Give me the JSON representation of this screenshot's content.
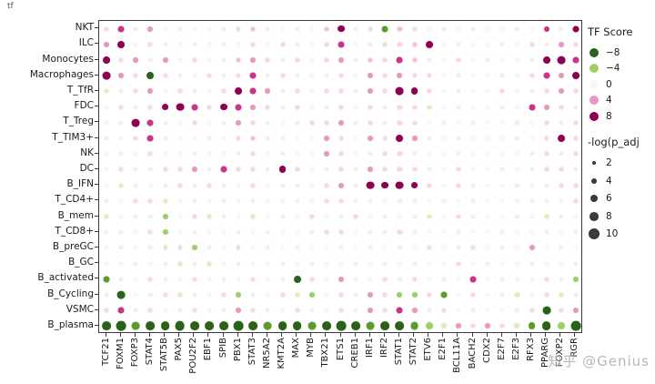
{
  "corner_label": "tf",
  "watermark": "知乎 @Genius",
  "legend": {
    "color_title": "TF Score",
    "color_values": [
      -8,
      -4,
      0,
      4,
      8
    ],
    "size_title": "-log(p_adj",
    "size_values": [
      2,
      4,
      6,
      8,
      10
    ]
  },
  "chart_data": {
    "type": "scatter",
    "subtype": "dot-heatmap",
    "title": "",
    "xlabel": "",
    "ylabel": "",
    "color_legend": "TF Score",
    "color_range": [
      -8,
      8
    ],
    "size_legend": "-log(p_adj",
    "size_range": [
      2,
      10
    ],
    "x_labels": [
      "TCF21",
      "FOXM1",
      "FOXP3",
      "STAT4",
      "STAT5B",
      "PAX5",
      "POU2F2",
      "EBF1",
      "SPIB",
      "PBX1",
      "STAT3",
      "NR5A2",
      "KMT2A",
      "MAX",
      "MYB",
      "TBX21",
      "ETS1",
      "CREB1",
      "IRF1",
      "IRF2",
      "STAT1",
      "STAT2",
      "ETV6",
      "E2F1",
      "BCL11A",
      "BACH2",
      "CDX2",
      "E2F7",
      "E2F3",
      "RFX3",
      "PPARG",
      "FOXP2",
      "RGR"
    ],
    "y_labels": [
      "NKT",
      "ILC",
      "Monocytes",
      "Macrophages",
      "T_TfR",
      "FDC",
      "T_Treg",
      "T_TIM3+",
      "NK",
      "DC",
      "B_IFN",
      "T_CD4+",
      "B_mem",
      "T_CD8+",
      "B_preGC",
      "B_GC",
      "B_activated",
      "B_Cycling",
      "VSMC",
      "B_plasma"
    ],
    "score_matrix": [
      [
        2,
        6,
        1,
        4,
        0,
        -1,
        0,
        0,
        1,
        2,
        3,
        1,
        0,
        1,
        0,
        3,
        8,
        1,
        2,
        -6,
        3,
        2,
        0,
        1,
        0,
        1,
        0,
        0,
        1,
        0,
        6,
        1,
        8
      ],
      [
        4,
        8,
        0,
        2,
        1,
        0,
        -1,
        0,
        1,
        0,
        2,
        0,
        2,
        1,
        0,
        2,
        6,
        0,
        1,
        2,
        2,
        3,
        8,
        0,
        1,
        0,
        0,
        1,
        0,
        2,
        1,
        4,
        2
      ],
      [
        8,
        2,
        4,
        1,
        4,
        0,
        2,
        0,
        1,
        3,
        4,
        2,
        1,
        2,
        0,
        2,
        4,
        1,
        3,
        2,
        6,
        3,
        1,
        0,
        2,
        0,
        1,
        0,
        0,
        1,
        8,
        8,
        6
      ],
      [
        8,
        4,
        2,
        -8,
        2,
        1,
        0,
        2,
        1,
        2,
        6,
        1,
        2,
        1,
        0,
        1,
        2,
        0,
        4,
        2,
        4,
        2,
        2,
        0,
        1,
        0,
        0,
        1,
        0,
        2,
        6,
        4,
        8
      ],
      [
        -2,
        1,
        2,
        4,
        0,
        2,
        1,
        0,
        2,
        8,
        6,
        4,
        1,
        2,
        0,
        2,
        2,
        1,
        4,
        2,
        8,
        8,
        2,
        0,
        1,
        0,
        0,
        2,
        0,
        1,
        2,
        4,
        2
      ],
      [
        0,
        2,
        1,
        2,
        8,
        8,
        6,
        2,
        8,
        6,
        4,
        2,
        1,
        2,
        0,
        1,
        2,
        0,
        2,
        1,
        2,
        2,
        -2,
        0,
        1,
        0,
        0,
        1,
        0,
        6,
        4,
        2,
        1
      ],
      [
        0,
        1,
        8,
        6,
        1,
        0,
        2,
        0,
        1,
        4,
        2,
        1,
        0,
        1,
        2,
        2,
        4,
        1,
        2,
        1,
        2,
        2,
        0,
        1,
        0,
        1,
        0,
        0,
        1,
        0,
        2,
        1,
        2
      ],
      [
        1,
        0,
        2,
        6,
        1,
        0,
        0,
        1,
        0,
        2,
        3,
        1,
        1,
        0,
        0,
        4,
        2,
        0,
        4,
        2,
        8,
        4,
        1,
        0,
        1,
        0,
        0,
        0,
        1,
        0,
        2,
        8,
        2
      ],
      [
        0,
        1,
        0,
        2,
        0,
        0,
        1,
        0,
        0,
        1,
        2,
        0,
        1,
        0,
        0,
        4,
        2,
        0,
        1,
        2,
        2,
        1,
        0,
        0,
        1,
        0,
        0,
        0,
        0,
        1,
        2,
        1,
        2
      ],
      [
        0,
        2,
        1,
        1,
        2,
        2,
        4,
        1,
        6,
        2,
        2,
        1,
        8,
        2,
        0,
        1,
        2,
        1,
        4,
        2,
        2,
        2,
        1,
        0,
        2,
        0,
        0,
        1,
        0,
        1,
        2,
        2,
        1
      ],
      [
        0,
        -2,
        1,
        0,
        1,
        2,
        1,
        2,
        1,
        0,
        2,
        0,
        1,
        1,
        0,
        2,
        4,
        1,
        8,
        8,
        8,
        8,
        2,
        0,
        2,
        1,
        0,
        0,
        1,
        0,
        1,
        2,
        2
      ],
      [
        -1,
        0,
        2,
        2,
        -2,
        0,
        1,
        0,
        1,
        0,
        1,
        0,
        0,
        1,
        0,
        2,
        2,
        1,
        1,
        0,
        1,
        1,
        0,
        -1,
        0,
        1,
        0,
        0,
        0,
        1,
        1,
        0,
        2
      ],
      [
        -2,
        0,
        1,
        -1,
        -4,
        0,
        2,
        -2,
        1,
        0,
        -2,
        0,
        1,
        0,
        2,
        0,
        1,
        2,
        0,
        1,
        0,
        1,
        -2,
        0,
        2,
        1,
        0,
        0,
        1,
        0,
        -2,
        1,
        0
      ],
      [
        -1,
        1,
        0,
        2,
        -4,
        0,
        1,
        0,
        0,
        1,
        0,
        1,
        0,
        0,
        1,
        2,
        2,
        0,
        1,
        1,
        2,
        1,
        0,
        0,
        1,
        0,
        0,
        1,
        0,
        0,
        1,
        0,
        1
      ],
      [
        0,
        1,
        0,
        1,
        -2,
        2,
        -4,
        1,
        0,
        2,
        0,
        1,
        0,
        1,
        0,
        0,
        1,
        0,
        1,
        0,
        1,
        0,
        2,
        0,
        1,
        2,
        0,
        1,
        0,
        4,
        0,
        1,
        0
      ],
      [
        0,
        0,
        1,
        0,
        1,
        -2,
        1,
        -2,
        0,
        1,
        0,
        0,
        1,
        0,
        1,
        0,
        0,
        1,
        0,
        1,
        0,
        1,
        0,
        0,
        2,
        0,
        1,
        0,
        0,
        1,
        0,
        0,
        1
      ],
      [
        -6,
        1,
        0,
        2,
        1,
        0,
        2,
        0,
        1,
        0,
        2,
        0,
        1,
        -8,
        2,
        0,
        4,
        1,
        0,
        2,
        1,
        2,
        0,
        1,
        0,
        6,
        0,
        1,
        0,
        0,
        2,
        1,
        -4
      ],
      [
        1,
        -8,
        0,
        1,
        2,
        -2,
        1,
        0,
        2,
        -4,
        1,
        0,
        2,
        -2,
        -4,
        0,
        2,
        1,
        4,
        2,
        -4,
        -4,
        2,
        -6,
        0,
        2,
        0,
        1,
        -2,
        0,
        2,
        -2,
        1
      ],
      [
        2,
        6,
        1,
        2,
        0,
        1,
        2,
        0,
        1,
        4,
        2,
        1,
        0,
        2,
        1,
        0,
        2,
        1,
        4,
        2,
        6,
        4,
        1,
        2,
        0,
        1,
        0,
        0,
        1,
        2,
        -8,
        2,
        4
      ],
      [
        -8,
        -8,
        -6,
        -8,
        -8,
        -8,
        -8,
        -8,
        -8,
        -8,
        -8,
        -6,
        -8,
        -8,
        -6,
        -8,
        -8,
        -8,
        -6,
        -8,
        -8,
        -6,
        -4,
        -2,
        4,
        2,
        4,
        2,
        -2,
        -6,
        -8,
        -4,
        -8
      ]
    ],
    "logp_matrix": [
      [
        3,
        5,
        2,
        4,
        2,
        2,
        2,
        2,
        2,
        3,
        3,
        2,
        2,
        2,
        2,
        3,
        6,
        2,
        3,
        5,
        3,
        3,
        2,
        2,
        2,
        2,
        2,
        2,
        2,
        2,
        4,
        2,
        5
      ],
      [
        4,
        6,
        2,
        3,
        2,
        2,
        2,
        2,
        2,
        2,
        3,
        2,
        3,
        2,
        2,
        3,
        5,
        2,
        2,
        3,
        3,
        3,
        6,
        2,
        2,
        2,
        2,
        2,
        2,
        3,
        2,
        4,
        3
      ],
      [
        6,
        3,
        4,
        2,
        4,
        2,
        3,
        2,
        2,
        3,
        4,
        3,
        2,
        3,
        2,
        3,
        4,
        2,
        3,
        3,
        5,
        3,
        2,
        2,
        3,
        2,
        2,
        2,
        2,
        2,
        6,
        7,
        5
      ],
      [
        7,
        4,
        3,
        6,
        3,
        2,
        2,
        3,
        2,
        3,
        5,
        2,
        3,
        2,
        2,
        2,
        3,
        2,
        4,
        3,
        4,
        3,
        3,
        2,
        2,
        2,
        2,
        2,
        2,
        3,
        5,
        4,
        6
      ],
      [
        3,
        2,
        3,
        4,
        2,
        3,
        2,
        2,
        3,
        6,
        5,
        4,
        2,
        3,
        2,
        3,
        3,
        2,
        4,
        3,
        7,
        6,
        3,
        2,
        2,
        2,
        2,
        3,
        2,
        2,
        3,
        4,
        3
      ],
      [
        2,
        3,
        2,
        3,
        6,
        7,
        5,
        3,
        6,
        5,
        4,
        3,
        2,
        3,
        2,
        2,
        3,
        2,
        3,
        2,
        3,
        3,
        3,
        2,
        2,
        2,
        2,
        2,
        2,
        5,
        4,
        3,
        2
      ],
      [
        2,
        2,
        7,
        5,
        2,
        2,
        3,
        2,
        2,
        4,
        3,
        2,
        2,
        2,
        3,
        3,
        4,
        2,
        3,
        2,
        3,
        3,
        2,
        2,
        2,
        2,
        2,
        2,
        2,
        2,
        3,
        2,
        3
      ],
      [
        2,
        2,
        3,
        5,
        2,
        2,
        2,
        2,
        2,
        3,
        3,
        2,
        2,
        2,
        2,
        4,
        3,
        2,
        4,
        3,
        6,
        4,
        2,
        2,
        2,
        2,
        2,
        2,
        2,
        2,
        3,
        6,
        3
      ],
      [
        2,
        2,
        2,
        3,
        2,
        2,
        2,
        2,
        2,
        2,
        3,
        2,
        2,
        2,
        2,
        4,
        3,
        2,
        2,
        3,
        3,
        2,
        2,
        2,
        2,
        2,
        2,
        2,
        2,
        2,
        3,
        2,
        3
      ],
      [
        2,
        3,
        2,
        2,
        3,
        3,
        4,
        2,
        5,
        3,
        3,
        2,
        6,
        3,
        2,
        2,
        3,
        2,
        4,
        3,
        3,
        3,
        2,
        2,
        3,
        2,
        2,
        2,
        2,
        2,
        3,
        3,
        2
      ],
      [
        2,
        3,
        2,
        2,
        2,
        3,
        2,
        3,
        2,
        2,
        3,
        2,
        2,
        2,
        2,
        3,
        4,
        2,
        7,
        6,
        7,
        6,
        3,
        2,
        3,
        2,
        2,
        2,
        2,
        2,
        2,
        3,
        3
      ],
      [
        2,
        2,
        3,
        3,
        3,
        2,
        2,
        2,
        2,
        2,
        2,
        2,
        2,
        2,
        2,
        3,
        3,
        2,
        2,
        2,
        2,
        2,
        2,
        2,
        2,
        2,
        2,
        2,
        2,
        2,
        2,
        2,
        3
      ],
      [
        3,
        2,
        2,
        2,
        4,
        2,
        3,
        3,
        2,
        2,
        3,
        2,
        2,
        2,
        3,
        2,
        2,
        3,
        2,
        2,
        2,
        2,
        3,
        2,
        3,
        2,
        2,
        2,
        2,
        2,
        3,
        2,
        2
      ],
      [
        2,
        2,
        2,
        3,
        4,
        2,
        2,
        2,
        2,
        2,
        2,
        2,
        2,
        2,
        2,
        3,
        3,
        2,
        2,
        2,
        3,
        2,
        2,
        2,
        2,
        2,
        2,
        2,
        2,
        2,
        2,
        2,
        2
      ],
      [
        2,
        2,
        2,
        2,
        3,
        3,
        4,
        2,
        2,
        3,
        2,
        2,
        2,
        2,
        2,
        2,
        2,
        2,
        2,
        2,
        2,
        2,
        3,
        2,
        2,
        3,
        2,
        2,
        2,
        4,
        2,
        2,
        2
      ],
      [
        2,
        2,
        2,
        2,
        2,
        3,
        2,
        3,
        2,
        2,
        2,
        2,
        2,
        2,
        2,
        2,
        2,
        2,
        2,
        2,
        2,
        2,
        2,
        2,
        3,
        2,
        2,
        2,
        2,
        2,
        2,
        2,
        2
      ],
      [
        5,
        2,
        2,
        3,
        2,
        2,
        3,
        2,
        2,
        2,
        3,
        2,
        2,
        6,
        3,
        2,
        4,
        2,
        2,
        3,
        2,
        3,
        2,
        2,
        2,
        5,
        2,
        2,
        2,
        2,
        3,
        2,
        4
      ],
      [
        2,
        7,
        2,
        2,
        3,
        3,
        2,
        2,
        3,
        4,
        2,
        2,
        3,
        3,
        4,
        2,
        3,
        2,
        4,
        3,
        4,
        4,
        3,
        5,
        2,
        3,
        2,
        2,
        3,
        2,
        3,
        3,
        2
      ],
      [
        3,
        5,
        2,
        3,
        2,
        2,
        3,
        2,
        2,
        4,
        3,
        2,
        2,
        3,
        2,
        2,
        3,
        2,
        4,
        3,
        5,
        4,
        2,
        3,
        2,
        2,
        2,
        2,
        2,
        3,
        7,
        3,
        4
      ],
      [
        8,
        9,
        7,
        8,
        8,
        9,
        8,
        8,
        8,
        9,
        8,
        7,
        8,
        8,
        7,
        8,
        9,
        8,
        7,
        8,
        8,
        7,
        6,
        4,
        4,
        3,
        4,
        3,
        4,
        6,
        8,
        6,
        9
      ]
    ]
  }
}
